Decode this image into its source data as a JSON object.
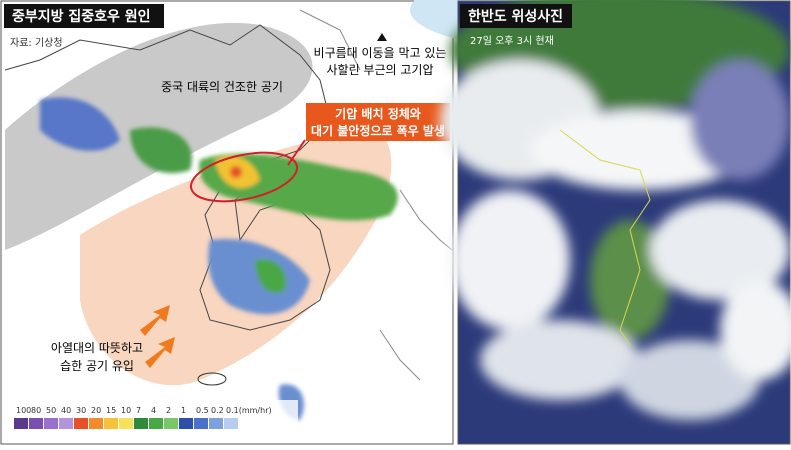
{
  "left_panel": {
    "title": "중부지방 집중호우 원인",
    "source": "자료: 기상청",
    "annotations": {
      "high_pressure": [
        "비구름대 이동을 막고 있는",
        "사할린 부근의 고기압"
      ],
      "dry_air": "중국 대륙의 건조한 공기",
      "callout": [
        "기압 배치 정체와",
        "대기 불안정으로 폭우 발생"
      ],
      "moist_air": [
        "아열대의 따뜻하고",
        "습한 공기 유입"
      ]
    },
    "legend": {
      "labels": [
        "100",
        "80",
        "50",
        "40",
        "30",
        "20",
        "15",
        "10",
        "7",
        "4",
        "2",
        "1",
        "0.5",
        "0.2",
        "0.1(mm/hr)"
      ],
      "colors": [
        "#5b3a8e",
        "#7a4fb0",
        "#9a6fcf",
        "#b494dd",
        "#e8502a",
        "#f28c28",
        "#f7c23a",
        "#f5e25a",
        "#2e8b3a",
        "#48a845",
        "#7cc66a",
        "#2f4fa8",
        "#4a72c8",
        "#7da0de",
        "#b7cdef"
      ]
    }
  },
  "right_panel": {
    "title": "한반도 위성사진",
    "timestamp": "27일 오후 3시 현재"
  }
}
